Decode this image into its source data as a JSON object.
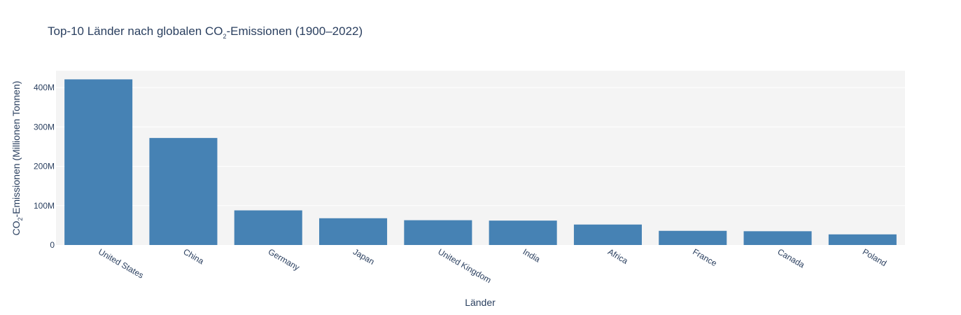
{
  "chart_data": {
    "type": "bar",
    "title_main": "Top-10 Länder nach globalen CO",
    "title_sub": "2",
    "title_rest": "-Emissionen (1900–2022)",
    "xlabel": "Länder",
    "ylabel_main": "CO",
    "ylabel_sub": "2",
    "ylabel_rest": "-Emissionen (Millionen Tonnen)",
    "categories": [
      "United States",
      "China",
      "Germany",
      "Japan",
      "United Kingdom",
      "India",
      "Africa",
      "France",
      "Canada",
      "Poland"
    ],
    "values": [
      421,
      272,
      88,
      68,
      63,
      62,
      52,
      36,
      35,
      27
    ],
    "yticks": [
      0,
      100,
      200,
      300,
      400
    ],
    "ytick_labels": [
      "0",
      "100M",
      "200M",
      "300M",
      "400M"
    ],
    "ylim": [
      0,
      443
    ],
    "grid": true,
    "bar_color": "#4682b4",
    "plot_bg": "#f4f4f4",
    "grid_color": "#ffffff"
  }
}
